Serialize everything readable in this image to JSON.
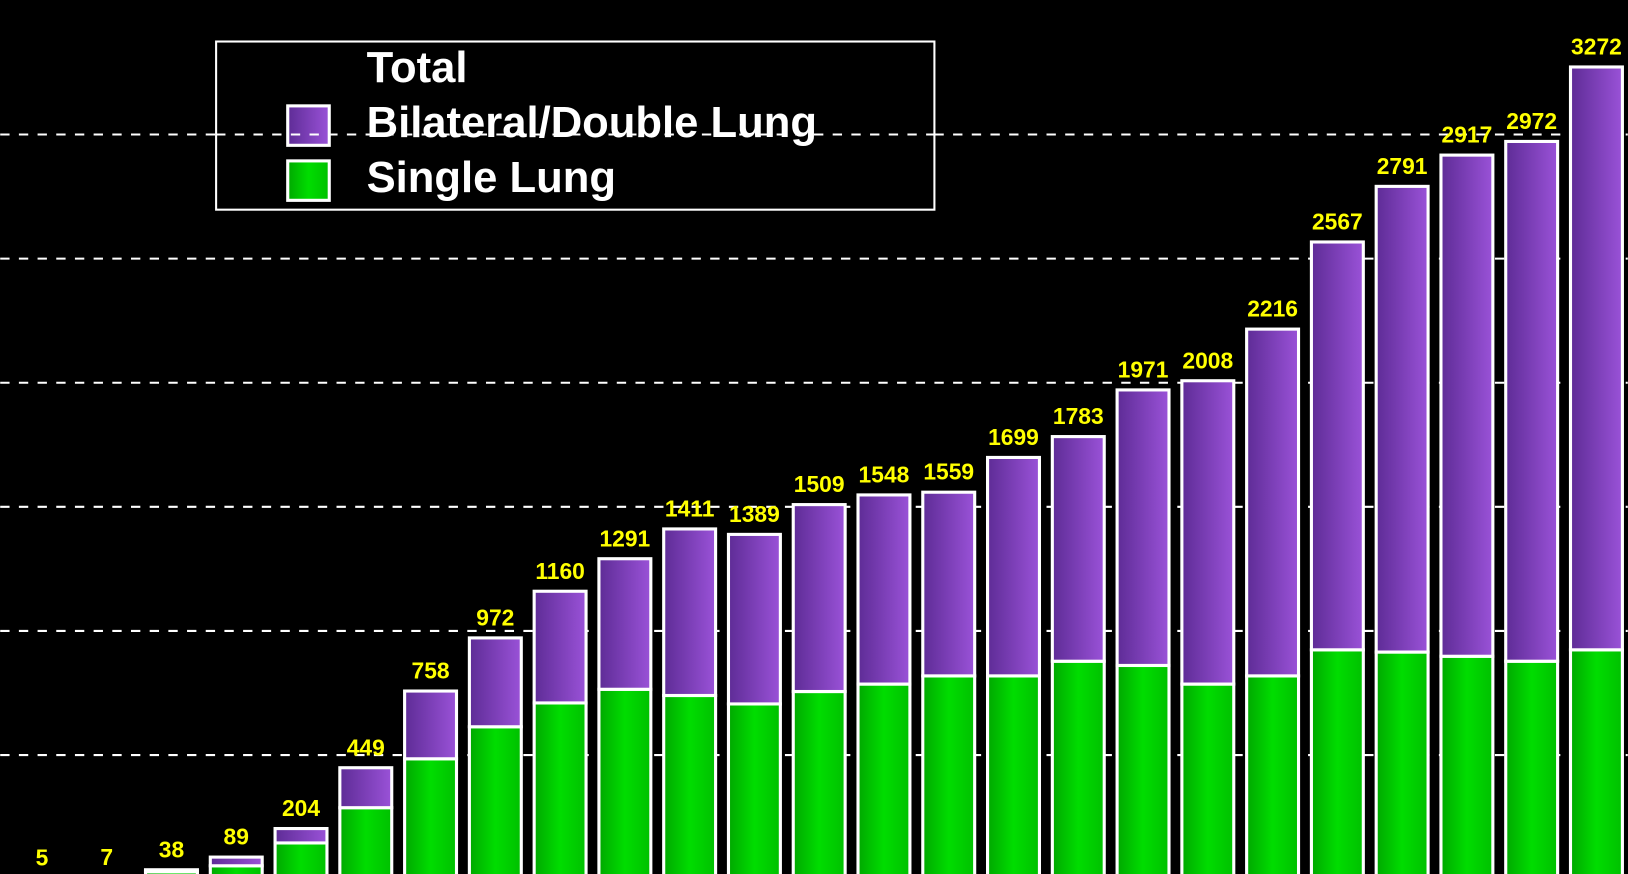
{
  "chart_data": {
    "type": "stacked_bar",
    "legend_title": "Total",
    "categories": [
      null,
      null,
      null,
      null,
      null,
      null,
      null,
      null,
      null,
      null,
      null,
      null,
      null,
      null,
      null,
      null,
      null,
      null,
      null,
      null,
      null,
      null,
      null,
      null,
      null
    ],
    "series": [
      {
        "name": "Single Lung",
        "color": "#00c800",
        "values": [
          5,
          7,
          30,
          54,
          146,
          288,
          485,
          614,
          710,
          765,
          740,
          706,
          756,
          786,
          819,
          819,
          878,
          861,
          786,
          819,
          924,
          915,
          898,
          878,
          924
        ]
      },
      {
        "name": "Bilateral/Double Lung",
        "color": "#8a44c8",
        "values": [
          0,
          0,
          8,
          35,
          58,
          161,
          273,
          358,
          450,
          526,
          671,
          683,
          753,
          762,
          740,
          880,
          905,
          1110,
          1222,
          1397,
          1643,
          1876,
          2019,
          2094,
          2348
        ]
      }
    ],
    "totals": [
      5,
      7,
      38,
      89,
      204,
      449,
      758,
      972,
      1160,
      1291,
      1411,
      1389,
      1509,
      1548,
      1559,
      1699,
      1783,
      1971,
      2008,
      2216,
      2567,
      2791,
      2917,
      2972,
      3272
    ],
    "ylim": [
      0,
      3500
    ],
    "yticks": [
      500,
      1000,
      1500,
      2000,
      2500,
      3000
    ],
    "grid": true
  }
}
